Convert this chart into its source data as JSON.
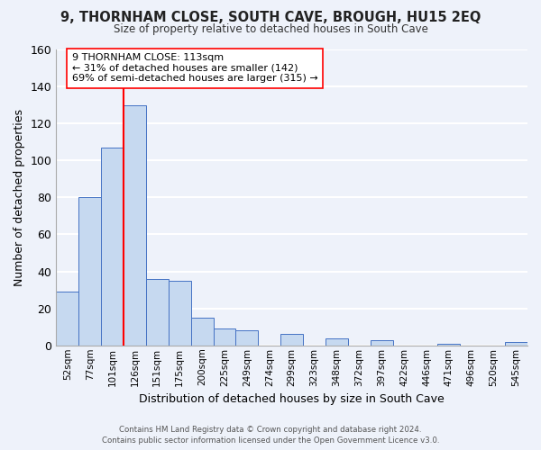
{
  "title": "9, THORNHAM CLOSE, SOUTH CAVE, BROUGH, HU15 2EQ",
  "subtitle": "Size of property relative to detached houses in South Cave",
  "xlabel": "Distribution of detached houses by size in South Cave",
  "ylabel": "Number of detached properties",
  "bar_labels": [
    "52sqm",
    "77sqm",
    "101sqm",
    "126sqm",
    "151sqm",
    "175sqm",
    "200sqm",
    "225sqm",
    "249sqm",
    "274sqm",
    "299sqm",
    "323sqm",
    "348sqm",
    "372sqm",
    "397sqm",
    "422sqm",
    "446sqm",
    "471sqm",
    "496sqm",
    "520sqm",
    "545sqm"
  ],
  "bar_heights": [
    29,
    80,
    107,
    130,
    36,
    35,
    15,
    9,
    8,
    0,
    6,
    0,
    4,
    0,
    3,
    0,
    0,
    1,
    0,
    0,
    2
  ],
  "bar_color": "#c6d9f0",
  "bar_edge_color": "#4472c4",
  "vline_color": "red",
  "annotation_title": "9 THORNHAM CLOSE: 113sqm",
  "annotation_line1": "← 31% of detached houses are smaller (142)",
  "annotation_line2": "69% of semi-detached houses are larger (315) →",
  "annotation_box_color": "white",
  "annotation_box_edge": "red",
  "ylim": [
    0,
    160
  ],
  "yticks": [
    0,
    20,
    40,
    60,
    80,
    100,
    120,
    140,
    160
  ],
  "footer_line1": "Contains HM Land Registry data © Crown copyright and database right 2024.",
  "footer_line2": "Contains public sector information licensed under the Open Government Licence v3.0.",
  "bg_color": "#eef2fa",
  "grid_color": "white"
}
